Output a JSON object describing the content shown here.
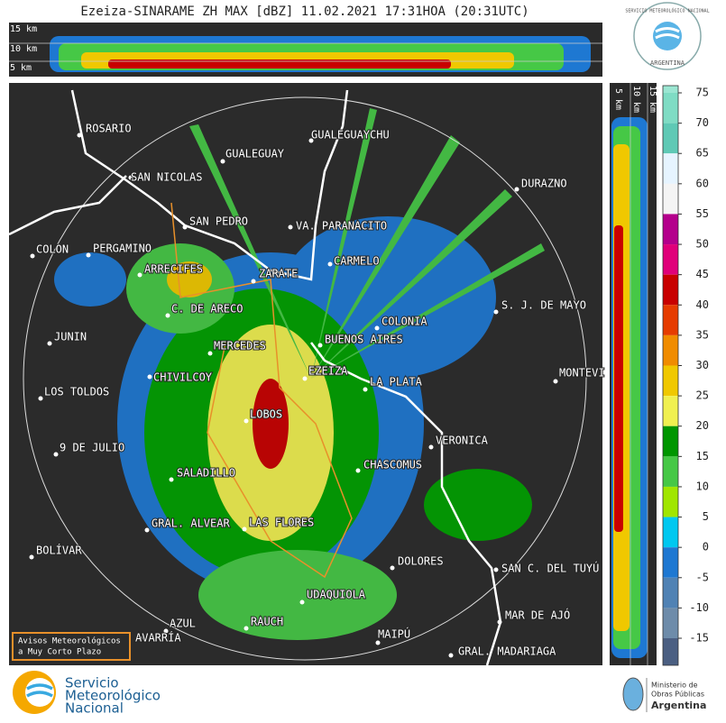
{
  "title": "Ezeiza-SINARAME ZH MAX [dBZ] 11.02.2021 17:31HOA (20:31UTC)",
  "top_profile": {
    "heights": [
      "15 km",
      "10 km",
      "5 km"
    ]
  },
  "side_profile": {
    "heights": [
      "5 km",
      "10 km",
      "15 km"
    ]
  },
  "badge": {
    "top": "SERVICIO METEOROLÓGICO NACIONAL",
    "bottom": "ARGENTINA"
  },
  "cities": [
    "ROSARIO",
    "GUALEGUAY",
    "GUALEGUAYCHU",
    "SAN NICOLAS",
    "DURAZNO",
    "SAN PEDRO",
    "VA. PARANACITO",
    "COLON",
    "PERGAMINO",
    "ARRECIFES",
    "ZARATE",
    "CARMELO",
    "S. J. DE MAYO",
    "C. DE ARECO",
    "COLONIA",
    "JUNIN",
    "BUENOS AIRES",
    "MERCEDES",
    "MONTEVI",
    "CHIVILCOY",
    "EZEIZA",
    "LA PLATA",
    "LOS TOLDOS",
    "LOBOS",
    "VERONICA",
    "9 DE JULIO",
    "CHASCOMUS",
    "SALADILLO",
    "GRAL. ALVEAR",
    "LAS FLORES",
    "BOLÍVAR",
    "DOLORES",
    "SAN C. DEL TUYÚ",
    "UDAQUIOLA",
    "MAR DE AJÓ",
    "AZUL",
    "RAUCH",
    "AVARRÍA",
    "MAIPÚ",
    "GRAL. MADARIAGA"
  ],
  "notice": [
    "Avisos Meteorológicos",
    "a Muy Corto Plazo"
  ],
  "colorbar": {
    "ticks": [
      75,
      70,
      65,
      60,
      55,
      50,
      45,
      40,
      35,
      30,
      25,
      20,
      15,
      10,
      5,
      0,
      -5,
      -10,
      -15
    ],
    "band_colors": [
      "#9be6d2",
      "#7fdcc4",
      "#5fc9b5",
      "#e6f4ff",
      "#f4f4f4",
      "#b4008c",
      "#e0007a",
      "#c80000",
      "#e63c00",
      "#f08c00",
      "#f0c800",
      "#f0f050",
      "#009600",
      "#46c846",
      "#a0e600",
      "#00c8f0",
      "#1e78d2",
      "#5082b4",
      "#6e8caa",
      "#4b5f82"
    ]
  },
  "logo_left": [
    "Servicio",
    "Meteorológico",
    "Nacional"
  ],
  "logo_right": [
    "Ministerio de",
    "Obras Públicas",
    "Argentina"
  ]
}
